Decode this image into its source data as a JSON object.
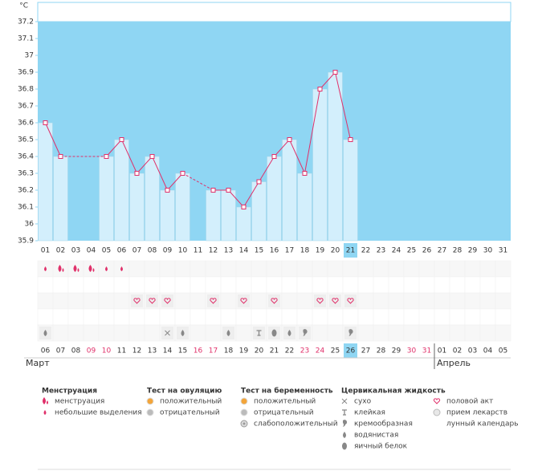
{
  "chart_data": {
    "type": "line",
    "ylabel": "°C",
    "days": [
      "01",
      "02",
      "03",
      "04",
      "05",
      "06",
      "07",
      "08",
      "09",
      "10",
      "11",
      "12",
      "13",
      "14",
      "15",
      "16",
      "17",
      "18",
      "19",
      "20",
      "21",
      "22",
      "23",
      "24",
      "25",
      "26",
      "27",
      "28",
      "29",
      "30",
      "31"
    ],
    "values": [
      36.6,
      36.4,
      null,
      null,
      36.4,
      36.5,
      36.3,
      36.4,
      36.2,
      36.3,
      null,
      36.2,
      36.2,
      36.1,
      36.25,
      36.4,
      36.5,
      36.3,
      36.8,
      36.9,
      36.5,
      null,
      null,
      null,
      null,
      null,
      null,
      null,
      null,
      null,
      null
    ],
    "ylim": [
      35.9,
      37.2
    ],
    "yticks": [
      35.9,
      36,
      36.1,
      36.2,
      36.3,
      36.4,
      36.5,
      36.6,
      36.7,
      36.8,
      36.9,
      37,
      37.1,
      37.2
    ],
    "line_color": "#e0306a",
    "bar_color": "#d3effc",
    "background_color": "#8fd6f3",
    "highlight_day": 21,
    "menstruation": [
      "small",
      "heavy",
      "heavy",
      "heavy",
      "small",
      "small",
      null,
      null,
      null,
      null,
      null,
      null,
      null,
      null,
      null,
      null,
      null,
      null,
      null,
      null,
      null,
      null,
      null,
      null,
      null,
      null,
      null,
      null,
      null,
      null,
      null
    ],
    "intercourse": [
      false,
      false,
      false,
      false,
      false,
      false,
      true,
      true,
      true,
      false,
      false,
      true,
      false,
      true,
      false,
      true,
      false,
      false,
      true,
      true,
      true,
      false,
      false,
      false,
      false,
      false,
      false,
      false,
      false,
      false,
      false
    ],
    "cervical": [
      "watery",
      null,
      null,
      null,
      null,
      null,
      null,
      null,
      "dry",
      "watery",
      null,
      null,
      "watery",
      null,
      "sticky",
      "eggwhite",
      "watery",
      "creamy",
      null,
      null,
      "creamy",
      null,
      null,
      null,
      null,
      null,
      null,
      null,
      null,
      null,
      null
    ],
    "cycle_days": [
      "06",
      "07",
      "08",
      "09",
      "10",
      "11",
      "12",
      "13",
      "14",
      "15",
      "16",
      "17",
      "18",
      "19",
      "20",
      "21",
      "22",
      "23",
      "24",
      "25",
      "26",
      "27",
      "28",
      "29",
      "30",
      "31",
      "01",
      "02",
      "03",
      "04",
      "05"
    ],
    "weekend": [
      false,
      false,
      false,
      true,
      true,
      false,
      false,
      false,
      false,
      false,
      true,
      true,
      false,
      false,
      false,
      false,
      false,
      true,
      true,
      false,
      false,
      false,
      false,
      false,
      true,
      true,
      false,
      false,
      false,
      false,
      false
    ],
    "highlight_cycle_day": "26",
    "months": [
      {
        "label": "Март",
        "start": 0
      },
      {
        "label": "Апрель",
        "start": 26
      }
    ]
  },
  "legend": [
    {
      "title": "Менструация",
      "items": [
        {
          "icon": "heavy",
          "label": "менструация"
        },
        {
          "icon": "small",
          "label": "небольшие выделения"
        }
      ]
    },
    {
      "title": "Тест на овуляцию",
      "items": [
        {
          "icon": "pos",
          "label": "положительный"
        },
        {
          "icon": "neg",
          "label": "отрицательный"
        }
      ]
    },
    {
      "title": "Тест на беременность",
      "items": [
        {
          "icon": "pos",
          "label": "положительный"
        },
        {
          "icon": "neg",
          "label": "отрицательный"
        },
        {
          "icon": "weak",
          "label": "слабоположительный"
        }
      ]
    },
    {
      "title": "Цервикальная жидкость",
      "items": [
        {
          "icon": "dry",
          "label": "сухо"
        },
        {
          "icon": "sticky",
          "label": "клейкая"
        },
        {
          "icon": "creamy",
          "label": "кремообразная"
        },
        {
          "icon": "watery",
          "label": "водянистая"
        },
        {
          "icon": "eggwhite",
          "label": "яичный белок"
        }
      ]
    },
    {
      "items": [
        {
          "icon": "heart",
          "label": "половой акт"
        },
        {
          "icon": "pill",
          "label": "прием лекарств"
        },
        {
          "icon": "moon",
          "label": "лунный календарь"
        }
      ]
    }
  ]
}
